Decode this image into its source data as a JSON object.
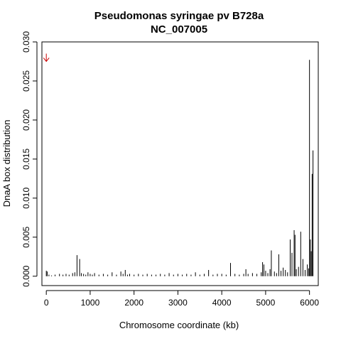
{
  "chart_data": {
    "type": "bar",
    "title": "Pseudomonas syringae pv B728a",
    "subtitle": "NC_007005",
    "xlabel": "Chromosome coordinate (kb)",
    "ylabel": "DnaA box distribution",
    "xlim": [
      -100,
      6200
    ],
    "ylim": [
      -0.0012,
      0.03
    ],
    "xticks": [
      0,
      1000,
      2000,
      3000,
      4000,
      5000,
      6000
    ],
    "xtick_labels": [
      "0",
      "1000",
      "2000",
      "3000",
      "4000",
      "5000",
      "6000"
    ],
    "yticks": [
      0.0,
      0.005,
      0.01,
      0.015,
      0.02,
      0.025,
      0.03
    ],
    "ytick_labels": [
      "0.000",
      "0.005",
      "0.010",
      "0.015",
      "0.020",
      "0.025",
      "0.030"
    ],
    "grid": false,
    "line_color": "#000000",
    "annotation": {
      "type": "arrow-down",
      "x": 0,
      "y": 0.0275,
      "color": "#cc0000"
    },
    "x": [
      0,
      20,
      60,
      120,
      200,
      300,
      380,
      450,
      520,
      600,
      650,
      700,
      760,
      800,
      850,
      900,
      950,
      1000,
      1050,
      1100,
      1200,
      1300,
      1400,
      1500,
      1600,
      1700,
      1750,
      1800,
      1850,
      1900,
      2000,
      2100,
      2200,
      2300,
      2400,
      2500,
      2600,
      2700,
      2800,
      2900,
      3000,
      3100,
      3200,
      3300,
      3400,
      3500,
      3600,
      3700,
      3800,
      3900,
      4000,
      4100,
      4200,
      4300,
      4400,
      4500,
      4550,
      4600,
      4700,
      4800,
      4900,
      4930,
      4960,
      5000,
      5050,
      5100,
      5130,
      5200,
      5250,
      5300,
      5350,
      5400,
      5450,
      5500,
      5560,
      5600,
      5650,
      5670,
      5700,
      5750,
      5800,
      5850,
      5900,
      5950,
      5980,
      6000,
      6020,
      6040,
      6060,
      6080
    ],
    "y": [
      0.0007,
      0.0006,
      0.0002,
      0.0001,
      0.0002,
      0.0003,
      0.0002,
      0.0003,
      0.0002,
      0.0004,
      0.0005,
      0.0027,
      0.0022,
      0.0004,
      0.0003,
      0.0002,
      0.0005,
      0.0003,
      0.0002,
      0.0004,
      0.0002,
      0.0003,
      0.0002,
      0.0005,
      0.0002,
      0.0006,
      0.0003,
      0.0008,
      0.0002,
      0.0003,
      0.0002,
      0.0003,
      0.0002,
      0.0003,
      0.0002,
      0.0002,
      0.0003,
      0.0002,
      0.0004,
      0.0002,
      0.0003,
      0.0002,
      0.0003,
      0.0002,
      0.0005,
      0.0002,
      0.0003,
      0.0008,
      0.0002,
      0.0003,
      0.0003,
      0.0002,
      0.0017,
      0.0003,
      0.0002,
      0.0003,
      0.0009,
      0.0003,
      0.0004,
      0.0003,
      0.0005,
      0.0018,
      0.0015,
      0.0007,
      0.0004,
      0.0009,
      0.0033,
      0.0006,
      0.0004,
      0.0028,
      0.0007,
      0.0011,
      0.0008,
      0.0005,
      0.0047,
      0.003,
      0.0059,
      0.0053,
      0.0009,
      0.0012,
      0.0057,
      0.0022,
      0.0008,
      0.0015,
      0.001,
      0.0277,
      0.0047,
      0.0032,
      0.0131,
      0.0161
    ]
  }
}
